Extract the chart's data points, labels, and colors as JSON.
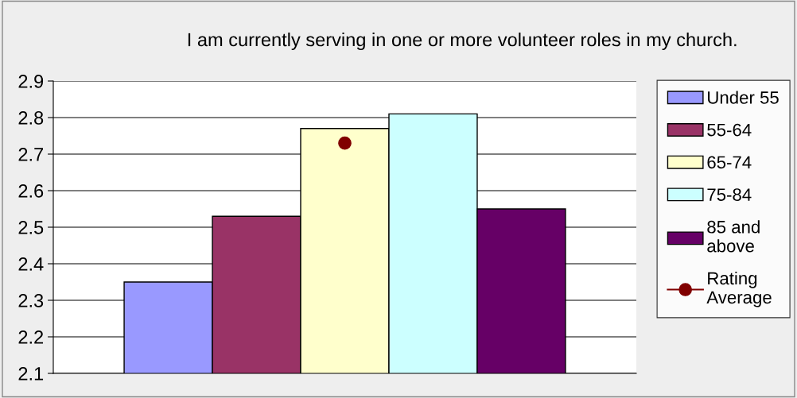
{
  "chart_data": {
    "type": "bar",
    "title": "I am currently serving in one or more volunteer roles in my church.",
    "categories": [
      null
    ],
    "series": [
      {
        "name": "Under 55",
        "color": "#9999ff",
        "values": [
          2.35
        ]
      },
      {
        "name": "55-64",
        "color": "#993366",
        "values": [
          2.53
        ]
      },
      {
        "name": "65-74",
        "color": "#ffffcc",
        "values": [
          2.77
        ]
      },
      {
        "name": "75-84",
        "color": "#ccffff",
        "values": [
          2.81
        ]
      },
      {
        "name": "85 and above",
        "color": "#660066",
        "values": [
          2.55
        ]
      },
      {
        "name": "Rating Average",
        "type": "line",
        "color": "#800000",
        "marker": "circle",
        "values": [
          2.73
        ]
      }
    ],
    "ylim": [
      2.1,
      2.9
    ],
    "yticks": [
      2.1,
      2.2,
      2.3,
      2.4,
      2.5,
      2.6,
      2.7,
      2.8,
      2.9
    ],
    "grid": "y",
    "legend": "right"
  }
}
